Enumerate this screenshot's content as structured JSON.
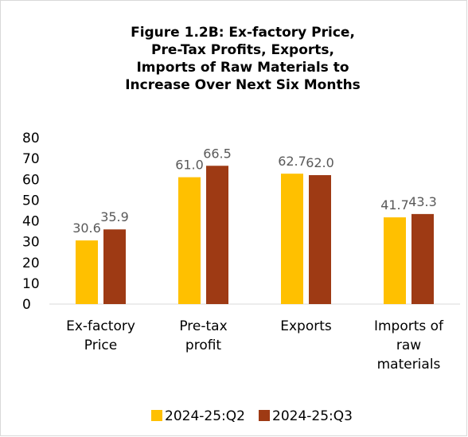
{
  "chart_data": {
    "type": "bar",
    "title": "Figure 1.2B: Ex-factory Price, Pre-Tax Profits, Exports, Imports of Raw Materials to Increase Over Next Six Months",
    "categories": [
      "Ex-factory Price",
      "Pre-tax profit",
      "Exports",
      "Imports of raw materials"
    ],
    "series": [
      {
        "name": "2024-25:Q2",
        "color": "#FFC000",
        "values": [
          30.6,
          61.0,
          62.7,
          41.7
        ],
        "value_labels": [
          "30.6",
          "61.0",
          "62.7",
          "41.7"
        ]
      },
      {
        "name": "2024-25:Q3",
        "color": "#9E3A14",
        "values": [
          35.9,
          66.5,
          62.0,
          43.3
        ],
        "value_labels": [
          "35.9",
          "66.5",
          "62.0",
          "43.3"
        ]
      }
    ],
    "ylim": [
      0,
      80
    ],
    "yticks": [
      0,
      10,
      20,
      30,
      40,
      50,
      60,
      70,
      80
    ],
    "grid": false,
    "legend": "bottom"
  }
}
